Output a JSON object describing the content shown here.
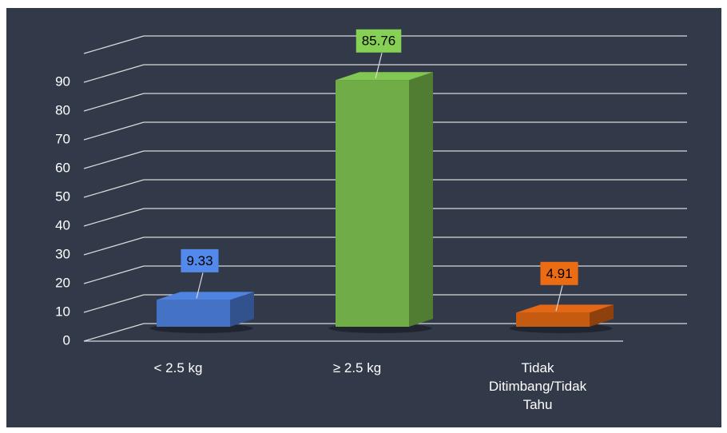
{
  "chart_data": {
    "type": "bar3d",
    "categories": [
      "< 2.5 kg",
      "≥ 2.5 kg",
      "Tidak Ditimbang/Tidak Tahu"
    ],
    "values": [
      9.33,
      85.76,
      4.91
    ],
    "colors": [
      "#4472c4",
      "#70ad47",
      "#c55a11"
    ],
    "ylim": [
      0,
      100
    ],
    "yticks": [
      0,
      10,
      20,
      30,
      40,
      50,
      60,
      70,
      80,
      90
    ],
    "grid": true
  }
}
